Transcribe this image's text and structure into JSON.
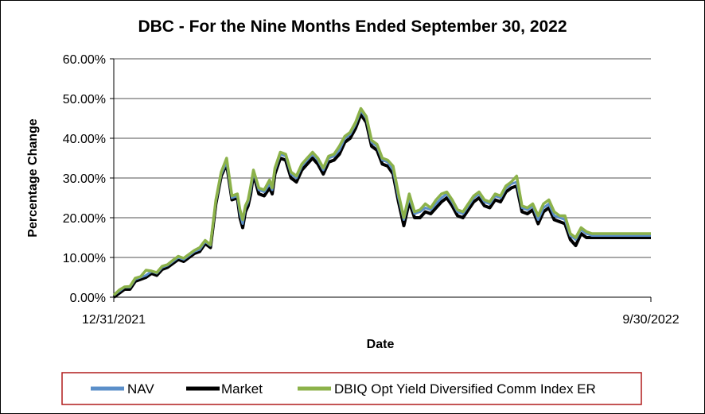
{
  "chart_data": {
    "type": "line",
    "title": "DBC - For the Nine Months Ended September 30, 2022",
    "xlabel": "Date",
    "ylabel": "Percentage Change",
    "x_ticks": [
      "12/31/2021",
      "9/30/2022"
    ],
    "y_ticks": [
      "0.00%",
      "10.00%",
      "20.00%",
      "30.00%",
      "40.00%",
      "50.00%",
      "60.00%"
    ],
    "ylim": [
      0,
      60
    ],
    "xlim": [
      0,
      1
    ],
    "grid": "horizontal",
    "legend_position": "bottom",
    "colors": {
      "nav": "#5B8FC9",
      "market": "#000000",
      "index": "#8CB24A"
    },
    "x": [
      0,
      0.01,
      0.02,
      0.03,
      0.04,
      0.05,
      0.06,
      0.07,
      0.08,
      0.09,
      0.1,
      0.11,
      0.12,
      0.13,
      0.14,
      0.15,
      0.16,
      0.17,
      0.18,
      0.19,
      0.2,
      0.21,
      0.22,
      0.23,
      0.235,
      0.24,
      0.245,
      0.25,
      0.255,
      0.26,
      0.27,
      0.28,
      0.29,
      0.295,
      0.3,
      0.31,
      0.32,
      0.33,
      0.34,
      0.35,
      0.36,
      0.37,
      0.38,
      0.39,
      0.4,
      0.41,
      0.42,
      0.43,
      0.44,
      0.45,
      0.46,
      0.47,
      0.48,
      0.49,
      0.5,
      0.51,
      0.52,
      0.53,
      0.54,
      0.55,
      0.56,
      0.57,
      0.58,
      0.59,
      0.6,
      0.61,
      0.62,
      0.63,
      0.64,
      0.65,
      0.66,
      0.67,
      0.68,
      0.69,
      0.7,
      0.71,
      0.72,
      0.73,
      0.74,
      0.75,
      0.76,
      0.77,
      0.78,
      0.79,
      0.8,
      0.81,
      0.82,
      0.83,
      0.84,
      0.85,
      0.86,
      0.87,
      0.88,
      0.89,
      0.9,
      0.91,
      0.92,
      0.93,
      0.94,
      0.95,
      0.96,
      0.97,
      0.98,
      0.99,
      1.0
    ],
    "series": [
      {
        "name": "NAV",
        "values": [
          0.5,
          1.5,
          2.5,
          2.5,
          4.5,
          5.0,
          5.5,
          6.5,
          6.0,
          7.5,
          8.0,
          9.0,
          10.0,
          9.5,
          10.5,
          11.5,
          12.0,
          14.0,
          13.0,
          24.0,
          31.0,
          34.0,
          25.0,
          25.5,
          21.0,
          18.5,
          22.5,
          24.0,
          27.0,
          31.5,
          27.0,
          26.5,
          28.5,
          27.0,
          32.0,
          36.0,
          35.5,
          31.0,
          30.0,
          33.0,
          34.5,
          36.0,
          34.5,
          32.0,
          35.0,
          35.5,
          37.0,
          40.0,
          41.0,
          43.5,
          47.0,
          45.0,
          39.0,
          38.0,
          34.5,
          34.0,
          32.0,
          25.0,
          19.5,
          25.0,
          21.0,
          21.5,
          22.5,
          22.0,
          23.5,
          25.0,
          26.0,
          24.0,
          21.5,
          21.0,
          23.0,
          25.0,
          26.0,
          24.0,
          23.5,
          25.5,
          25.0,
          27.5,
          28.5,
          29.0,
          22.5,
          22.0,
          23.0,
          19.5,
          22.5,
          23.5,
          20.5,
          20.0,
          19.5,
          15.5,
          14.5,
          17.0,
          16.0,
          15.5,
          15.5,
          15.5,
          15.5,
          15.5,
          15.5,
          15.5,
          15.5,
          15.5,
          15.5,
          15.5,
          15.5
        ]
      },
      {
        "name": "Market",
        "values": [
          0,
          1.0,
          2.0,
          2.0,
          4.0,
          4.5,
          5.0,
          6.0,
          5.5,
          7.0,
          7.5,
          8.5,
          9.5,
          9.0,
          10.0,
          11.0,
          11.5,
          13.5,
          12.5,
          23.5,
          30.5,
          33.5,
          24.5,
          25.0,
          20.0,
          17.5,
          21.5,
          23.0,
          26.0,
          31.0,
          26.0,
          25.5,
          27.5,
          26.0,
          31.0,
          35.0,
          34.5,
          30.0,
          29.0,
          32.0,
          33.5,
          35.0,
          33.5,
          31.0,
          34.0,
          34.5,
          36.0,
          39.0,
          40.0,
          42.5,
          46.0,
          44.0,
          38.0,
          37.0,
          33.5,
          33.0,
          31.0,
          24.0,
          18.0,
          24.0,
          20.0,
          20.0,
          21.5,
          21.0,
          22.5,
          24.0,
          25.0,
          23.0,
          20.5,
          20.0,
          22.0,
          24.0,
          25.0,
          23.0,
          22.5,
          24.5,
          24.0,
          26.5,
          27.5,
          28.0,
          21.5,
          21.0,
          22.0,
          18.5,
          21.5,
          22.5,
          19.5,
          19.0,
          18.5,
          14.5,
          13.0,
          16.0,
          15.0,
          15.0,
          15.0,
          15.0,
          15.0,
          15.0,
          15.0,
          15.0,
          15.0,
          15.0,
          15.0,
          15.0,
          15.0
        ]
      },
      {
        "name": "DBIQ Opt Yield Diversified Comm Index ER",
        "values": [
          0.5,
          1.8,
          2.6,
          2.7,
          4.8,
          5.2,
          6.8,
          6.6,
          6.2,
          7.8,
          8.2,
          9.3,
          10.3,
          9.8,
          10.8,
          11.8,
          12.5,
          14.3,
          13.2,
          24.5,
          31.5,
          35.0,
          25.5,
          26.0,
          22.0,
          19.5,
          23.0,
          24.5,
          28.0,
          32.0,
          27.5,
          27.0,
          29.5,
          27.5,
          32.5,
          36.5,
          36.0,
          31.5,
          30.5,
          33.5,
          35.0,
          36.5,
          35.0,
          32.5,
          35.5,
          36.0,
          38.0,
          40.5,
          41.5,
          44.0,
          47.5,
          45.5,
          39.5,
          38.5,
          35.0,
          34.5,
          33.0,
          26.0,
          20.0,
          26.0,
          21.5,
          22.0,
          23.5,
          22.5,
          24.5,
          26.0,
          26.5,
          24.5,
          22.0,
          21.5,
          23.5,
          25.5,
          26.5,
          24.5,
          24.0,
          26.0,
          25.5,
          28.0,
          29.0,
          30.5,
          23.0,
          22.5,
          23.5,
          20.5,
          23.5,
          24.5,
          21.5,
          20.5,
          20.5,
          16.0,
          15.0,
          17.5,
          16.5,
          16.0,
          16.0,
          16.0,
          16.0,
          16.0,
          16.0,
          16.0,
          16.0,
          16.0,
          16.0,
          16.0,
          16.0
        ]
      }
    ]
  },
  "legend": {
    "items": [
      {
        "label": "NAV",
        "color": "#5B8FC9"
      },
      {
        "label": "Market",
        "color": "#000000"
      },
      {
        "label": "DBIQ Opt Yield Diversified Comm Index ER",
        "color": "#8CB24A"
      }
    ]
  }
}
